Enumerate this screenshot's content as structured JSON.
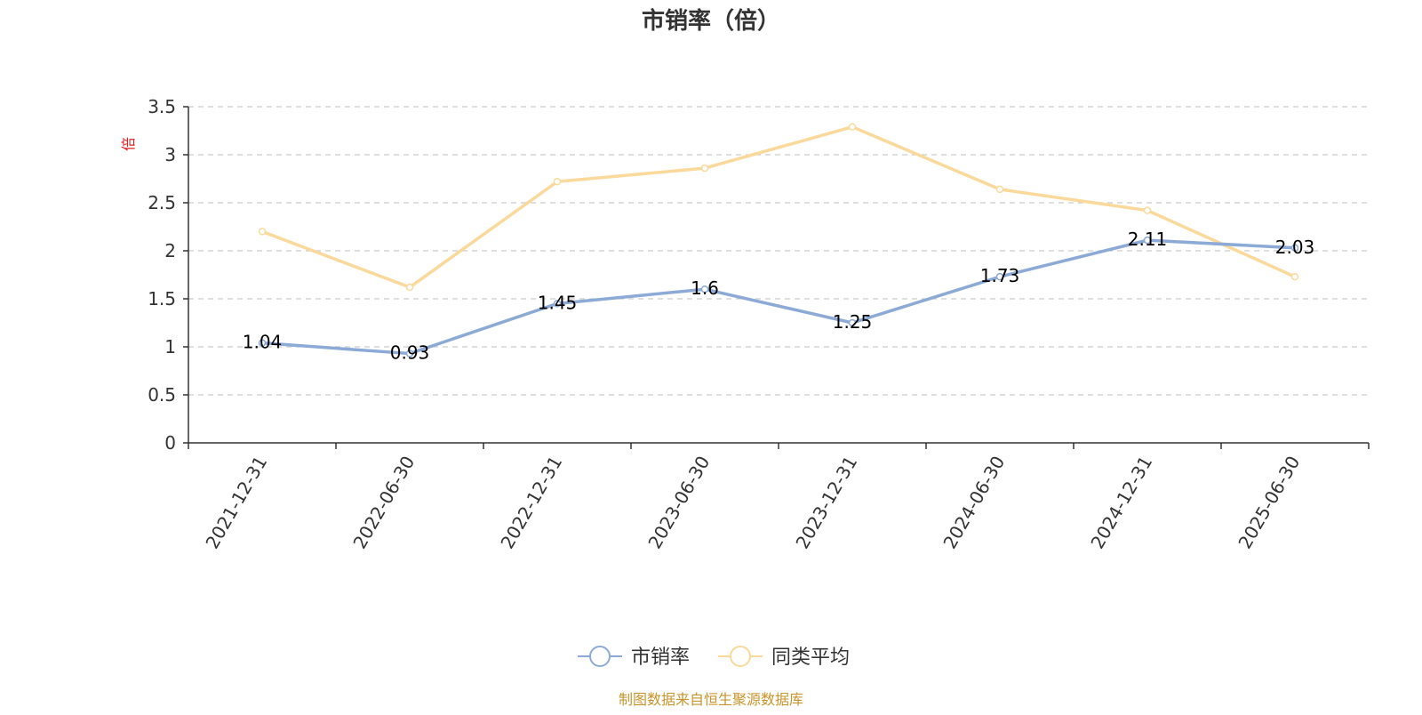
{
  "chart_data": {
    "type": "line",
    "title": "市销率（倍）",
    "ylabel": "倍",
    "xlabel": "",
    "categories": [
      "2021-12-31",
      "2022-06-30",
      "2022-12-31",
      "2023-06-30",
      "2023-12-31",
      "2024-06-30",
      "2024-12-31",
      "2025-06-30"
    ],
    "ylim": [
      0,
      3.5
    ],
    "yticks": [
      "0",
      "0.5",
      "1",
      "1.5",
      "2",
      "2.5",
      "3",
      "3.5"
    ],
    "grid": true,
    "legend_position": "bottom-center",
    "series": [
      {
        "name": "市销率",
        "color": "#8caad6",
        "values": [
          1.04,
          0.93,
          1.45,
          1.6,
          1.25,
          1.73,
          2.11,
          2.03
        ],
        "labels": [
          "1.04",
          "0.93",
          "1.45",
          "1.6",
          "1.25",
          "1.73",
          "2.11",
          "2.03"
        ],
        "show_labels": true
      },
      {
        "name": "同类平均",
        "color": "#fad99b",
        "values": [
          2.2,
          1.62,
          2.72,
          2.86,
          3.29,
          2.64,
          2.42,
          1.73
        ],
        "show_labels": false
      }
    ],
    "source": "制图数据来自恒生聚源数据库"
  }
}
